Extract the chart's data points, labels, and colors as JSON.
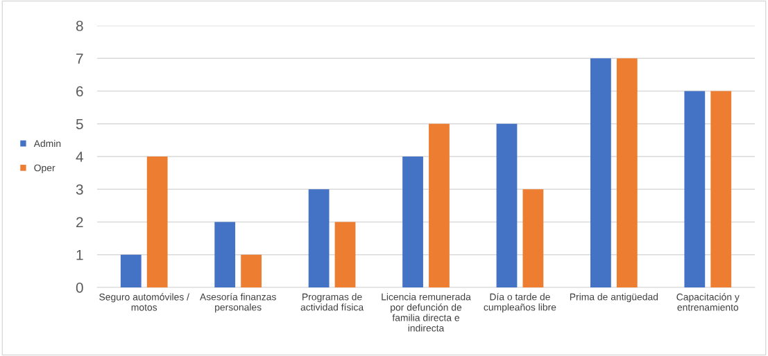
{
  "chart_data": {
    "type": "bar",
    "categories": [
      "Seguro automóviles /\nmotos",
      "Asesoría finanzas\npersonales",
      "Programas de\nactividad física",
      "Licencia remunerada\npor defunción de\nfamilia directa e\nindirecta",
      "Día o tarde de\ncumpleaños libre",
      "Prima de antigüedad",
      "Capacitación y\nentrenamiento"
    ],
    "series": [
      {
        "name": "Admin",
        "color": "#4472c4",
        "values": [
          1,
          2,
          3,
          4,
          5,
          7,
          6
        ]
      },
      {
        "name": "Oper",
        "color": "#ed7d31",
        "values": [
          4,
          1,
          2,
          5,
          3,
          7,
          6
        ]
      }
    ],
    "ylim": [
      0,
      8
    ],
    "yticks": [
      0,
      1,
      2,
      3,
      4,
      5,
      6,
      7,
      8
    ],
    "grid": "y",
    "legend": "left"
  }
}
